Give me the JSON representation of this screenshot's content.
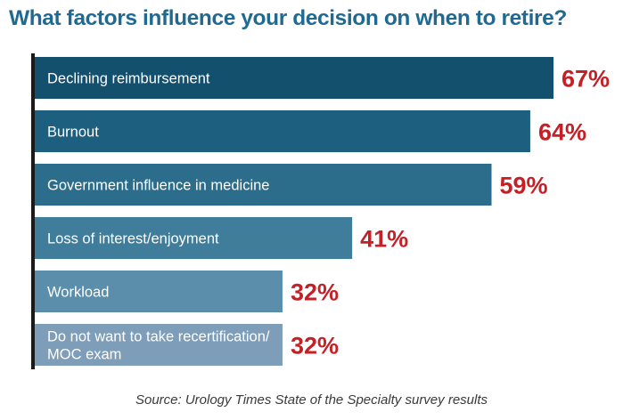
{
  "chart_data": {
    "type": "bar",
    "orientation": "horizontal",
    "title": "What factors influence your decision on when to retire?",
    "categories": [
      [
        "Declining reimbursement"
      ],
      [
        "Burnout"
      ],
      [
        "Government influence in medicine"
      ],
      [
        "Loss of interest/enjoyment"
      ],
      [
        "Workload"
      ],
      [
        "Do not want to take recertification/",
        "MOC exam"
      ]
    ],
    "values": [
      67,
      64,
      59,
      41,
      32,
      32
    ],
    "value_labels": [
      "67%",
      "64%",
      "59%",
      "41%",
      "32%",
      "32%"
    ],
    "unit": "%",
    "xlim": [
      0,
      67
    ],
    "grid": false,
    "legend": "none",
    "colors": {
      "bars": [
        "#13506e",
        "#1d5f7f",
        "#2c6d8c",
        "#3f7d9b",
        "#5a8eaa",
        "#7d9db8"
      ],
      "value_label": "#c62027",
      "axis": "#1a1a1a",
      "category_label": "#ffffff"
    }
  },
  "source": "Source: Urology Times State of the Specialty survey results"
}
